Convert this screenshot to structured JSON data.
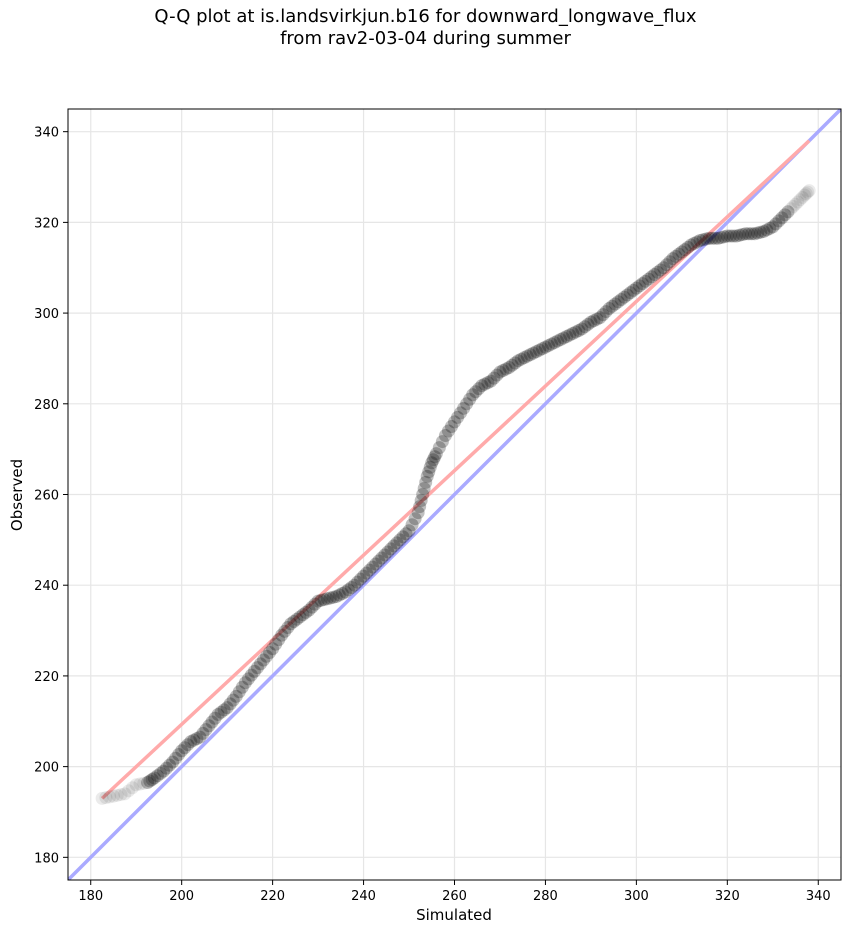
{
  "chart_data": {
    "type": "scatter",
    "title_line1": "Q-Q plot at is.landsvirkjun.b16 for downward_longwave_flux",
    "title_line2": "from rav2-03-04 during summer",
    "xlabel": "Simulated",
    "ylabel": "Observed",
    "xlim": [
      175,
      345
    ],
    "ylim": [
      175,
      345
    ],
    "xticks": [
      180,
      200,
      220,
      240,
      260,
      280,
      300,
      320,
      340
    ],
    "yticks": [
      180,
      200,
      220,
      240,
      260,
      280,
      300,
      320,
      340
    ],
    "grid": true,
    "reference_line": {
      "color": "#aaaaff",
      "from": [
        175,
        175
      ],
      "to": [
        345,
        345
      ]
    },
    "fit_line": {
      "color": "#ffaaaa",
      "from": [
        182.5,
        193
      ],
      "to": [
        338,
        338
      ]
    },
    "point_color": "#000000",
    "points": [
      [
        182.5,
        193
      ],
      [
        185,
        193.5
      ],
      [
        187.5,
        194
      ],
      [
        190,
        196
      ],
      [
        192.5,
        196.5
      ],
      [
        194,
        197.5
      ],
      [
        196,
        199
      ],
      [
        198,
        201
      ],
      [
        200,
        203.5
      ],
      [
        202,
        205.5
      ],
      [
        204,
        206.5
      ],
      [
        206,
        209
      ],
      [
        208,
        211.5
      ],
      [
        210,
        213
      ],
      [
        212,
        215.5
      ],
      [
        214,
        218.5
      ],
      [
        216,
        221
      ],
      [
        218,
        223.5
      ],
      [
        220,
        226
      ],
      [
        222,
        229
      ],
      [
        224,
        231.5
      ],
      [
        226,
        233
      ],
      [
        228,
        234.5
      ],
      [
        230,
        236.5
      ],
      [
        232,
        237
      ],
      [
        234,
        237.5
      ],
      [
        236,
        238.5
      ],
      [
        238,
        240
      ],
      [
        240,
        242
      ],
      [
        242,
        244
      ],
      [
        244,
        246
      ],
      [
        246,
        248
      ],
      [
        248,
        250
      ],
      [
        250,
        252
      ],
      [
        252,
        256
      ],
      [
        253,
        260
      ],
      [
        254,
        264
      ],
      [
        255,
        267
      ],
      [
        256,
        269
      ],
      [
        258,
        273
      ],
      [
        260,
        276
      ],
      [
        262,
        279
      ],
      [
        264,
        282
      ],
      [
        266,
        284
      ],
      [
        268,
        285
      ],
      [
        270,
        287
      ],
      [
        272,
        288
      ],
      [
        274,
        289.5
      ],
      [
        276,
        290.5
      ],
      [
        278,
        291.5
      ],
      [
        280,
        292.5
      ],
      [
        282,
        293.5
      ],
      [
        284,
        294.5
      ],
      [
        286,
        295.5
      ],
      [
        288,
        296.5
      ],
      [
        290,
        298
      ],
      [
        292,
        299
      ],
      [
        294,
        301
      ],
      [
        296,
        302.5
      ],
      [
        298,
        304
      ],
      [
        300,
        305.5
      ],
      [
        302,
        307
      ],
      [
        304,
        308.5
      ],
      [
        306,
        310
      ],
      [
        308,
        312
      ],
      [
        310,
        313.5
      ],
      [
        312,
        315
      ],
      [
        314,
        316
      ],
      [
        316,
        316.5
      ],
      [
        318,
        316.5
      ],
      [
        320,
        317
      ],
      [
        322,
        317
      ],
      [
        324,
        317.5
      ],
      [
        326,
        317.5
      ],
      [
        328,
        318
      ],
      [
        330,
        319
      ],
      [
        332,
        321
      ],
      [
        334,
        323
      ],
      [
        335.5,
        324.5
      ],
      [
        337,
        326
      ],
      [
        338,
        327
      ]
    ]
  }
}
